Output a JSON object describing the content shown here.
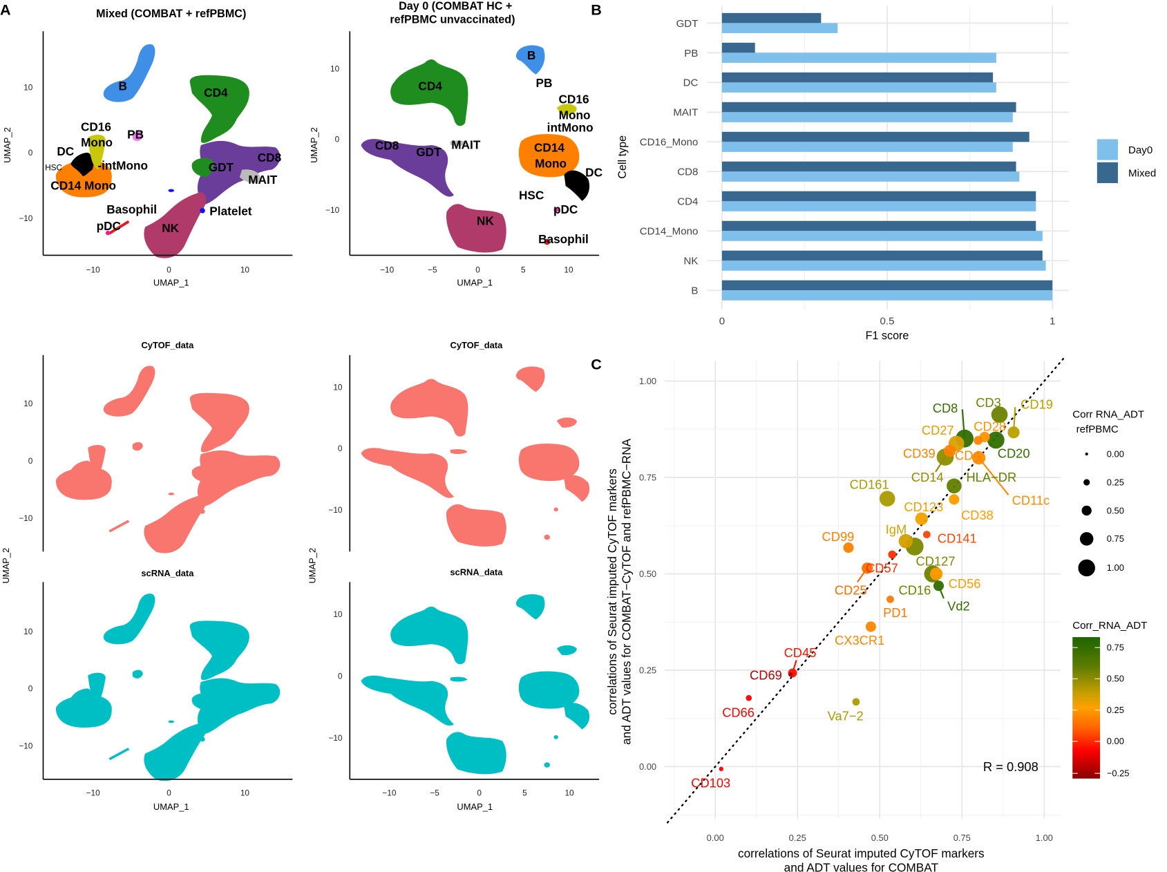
{
  "panel_letters": {
    "a": "A",
    "b": "B",
    "c": "C"
  },
  "panel_a": {
    "mixed_title": "Mixed (COMBAT + refPBMC)",
    "day0_title_line1": "Day 0 (COMBAT HC +",
    "day0_title_line2": "refPBMC unvaccinated)",
    "xlabel": "UMAP_1",
    "ylabel": "UMAP_2",
    "cytof_title": "CyTOF_data",
    "scrna_title": "scRNA_data",
    "mixed_xticks": [
      "−10",
      "0",
      "10"
    ],
    "mixed_yticks": [
      "10",
      "0",
      "−10"
    ],
    "day0_xticks": [
      "−10",
      "−5",
      "0",
      "5",
      "10"
    ],
    "day0_yticks": [
      "10",
      "0",
      "−10"
    ],
    "mixed_labels": [
      "B",
      "CD4",
      "CD16",
      "Mono",
      "PB",
      "DC",
      "HSC",
      "-intMono",
      "CD14 Mono",
      "GDT",
      "CD8",
      "MAIT",
      "Basophil",
      "Platelet",
      "pDC",
      "NK"
    ],
    "day0_labels": [
      "B",
      "PB",
      "CD4",
      "CD16",
      "Mono",
      "intMono",
      "CD8",
      "GDT",
      "MAIT",
      "CD14",
      "Mono",
      "DC",
      "HSC",
      "pDC",
      "NK",
      "Basophil"
    ],
    "colors": {
      "B": "#3f8fe6",
      "CD4": "#1e8c1e",
      "CD8": "#6a3d9a",
      "NK": "#b03a6a",
      "CD14_Mono": "#ff8000",
      "DC": "#000000",
      "CD16_Mono": "#c8c80a",
      "PB": "#ee7fee",
      "Platelet": "#1010ff",
      "Basophil": "#e31a1c",
      "MAIT": "#bbbbbb",
      "CyTOF": "#f8766d",
      "scRNA": "#00bfc4"
    }
  },
  "chart_data": [
    {
      "type": "bar",
      "orientation": "horizontal",
      "categories": [
        "GDT",
        "PB",
        "DC",
        "MAIT",
        "CD16_Mono",
        "CD8",
        "CD4",
        "CD14_Mono",
        "NK",
        "B"
      ],
      "series": [
        {
          "name": "Mixed",
          "color": "#386890",
          "values": [
            0.3,
            0.1,
            0.82,
            0.89,
            0.93,
            0.89,
            0.95,
            0.95,
            0.97,
            1.0
          ]
        },
        {
          "name": "Day0",
          "color": "#7fbfec",
          "values": [
            0.35,
            0.83,
            0.83,
            0.88,
            0.88,
            0.9,
            0.95,
            0.97,
            0.98,
            1.0
          ]
        }
      ],
      "xlabel": "F1 score",
      "ylabel": "Cell type",
      "xlim": [
        0,
        1
      ],
      "xticks": [
        "0",
        "0.5",
        "1"
      ],
      "grid": true,
      "legend": "right"
    },
    {
      "type": "scatter",
      "xlabel_line1": "correlations of Seurat imputed CyTOF markers",
      "xlabel_line2": "and ADT values for COMBAT",
      "ylabel_line1": "correlations of Seurat imputed CyTOF markers",
      "ylabel_line2": "and ADT values for COMBAT−CyTOF and refPBMC−RNA",
      "xlim": [
        -0.15,
        1.05
      ],
      "ylim": [
        -0.14,
        1.05
      ],
      "xticks": [
        "0.00",
        "0.25",
        "0.50",
        "0.75",
        "1.00"
      ],
      "yticks": [
        "0.00",
        "0.25",
        "0.50",
        "0.75",
        "1.00"
      ],
      "annotation": "R = 0.908",
      "reference_line": "y = x (dotted)",
      "grid": true,
      "size_legend_title_line1": "Corr RNA_ADT",
      "size_legend_title_line2": "refPBMC",
      "size_legend_values": [
        "0.00",
        "0.25",
        "0.50",
        "0.75",
        "1.00"
      ],
      "color_legend_title": "Corr_RNA_ADT",
      "color_legend_ticks": [
        "0.75",
        "0.50",
        "0.25",
        "0.00",
        "−0.25"
      ],
      "points": [
        {
          "label": "CD8",
          "x": 0.758,
          "y": 0.851,
          "color_value": 0.8,
          "size_value": 1.0
        },
        {
          "label": "CD3",
          "x": 0.864,
          "y": 0.913,
          "color_value": 0.7,
          "size_value": 0.9
        },
        {
          "label": "CD20",
          "x": 0.853,
          "y": 0.847,
          "color_value": 0.8,
          "size_value": 0.95
        },
        {
          "label": "CD19",
          "x": 0.907,
          "y": 0.867,
          "color_value": 0.6,
          "size_value": 0.6
        },
        {
          "label": "CD28",
          "x": 0.819,
          "y": 0.855,
          "color_value": 0.45,
          "size_value": 0.5
        },
        {
          "label": "CD4",
          "x": 0.799,
          "y": 0.846,
          "color_value": 0.4,
          "size_value": 0.4
        },
        {
          "label": "CD11c",
          "x": 0.801,
          "y": 0.801,
          "color_value": 0.42,
          "size_value": 0.7
        },
        {
          "label": "CD27",
          "x": 0.733,
          "y": 0.838,
          "color_value": 0.55,
          "size_value": 0.85
        },
        {
          "label": "CD39",
          "x": 0.713,
          "y": 0.819,
          "color_value": 0.38,
          "size_value": 0.6
        },
        {
          "label": "CD14",
          "x": 0.699,
          "y": 0.803,
          "color_value": 0.66,
          "size_value": 0.95
        },
        {
          "label": "HLA−DR",
          "x": 0.726,
          "y": 0.728,
          "color_value": 0.72,
          "size_value": 0.8
        },
        {
          "label": "CD38",
          "x": 0.726,
          "y": 0.693,
          "color_value": 0.48,
          "size_value": 0.5
        },
        {
          "label": "CD161",
          "x": 0.523,
          "y": 0.695,
          "color_value": 0.62,
          "size_value": 0.85
        },
        {
          "label": "CD123",
          "x": 0.627,
          "y": 0.643,
          "color_value": 0.52,
          "size_value": 0.65
        },
        {
          "label": "IgM",
          "x": 0.579,
          "y": 0.585,
          "color_value": 0.56,
          "size_value": 0.75
        },
        {
          "label": "CD127",
          "x": 0.606,
          "y": 0.571,
          "color_value": 0.68,
          "size_value": 1.0
        },
        {
          "label": "CD141",
          "x": 0.643,
          "y": 0.602,
          "color_value": 0.18,
          "size_value": 0.3
        },
        {
          "label": "CD57",
          "x": 0.538,
          "y": 0.55,
          "color_value": 0.12,
          "size_value": 0.35
        },
        {
          "label": "CD99",
          "x": 0.405,
          "y": 0.568,
          "color_value": 0.38,
          "size_value": 0.5
        },
        {
          "label": "CD25",
          "x": 0.462,
          "y": 0.515,
          "color_value": 0.3,
          "size_value": 0.55
        },
        {
          "label": "CD16",
          "x": 0.661,
          "y": 0.5,
          "color_value": 0.7,
          "size_value": 0.95
        },
        {
          "label": "CD56",
          "x": 0.672,
          "y": 0.5,
          "color_value": 0.48,
          "size_value": 0.65
        },
        {
          "label": "Vd2",
          "x": 0.679,
          "y": 0.469,
          "color_value": 0.8,
          "size_value": 0.5
        },
        {
          "label": "PD1",
          "x": 0.532,
          "y": 0.434,
          "color_value": 0.35,
          "size_value": 0.3
        },
        {
          "label": "CX3CR1",
          "x": 0.473,
          "y": 0.363,
          "color_value": 0.4,
          "size_value": 0.5
        },
        {
          "label": "CD45",
          "x": 0.235,
          "y": 0.243,
          "color_value": 0.05,
          "size_value": 0.4
        },
        {
          "label": "CD69",
          "x": 0.229,
          "y": 0.239,
          "color_value": -0.2,
          "size_value": 0.1
        },
        {
          "label": "CD66",
          "x": 0.102,
          "y": 0.178,
          "color_value": 0.0,
          "size_value": 0.2
        },
        {
          "label": "Va7−2",
          "x": 0.428,
          "y": 0.168,
          "color_value": 0.62,
          "size_value": 0.3
        },
        {
          "label": "CD103",
          "x": 0.018,
          "y": -0.006,
          "color_value": 0.0,
          "size_value": 0.1
        }
      ]
    }
  ]
}
